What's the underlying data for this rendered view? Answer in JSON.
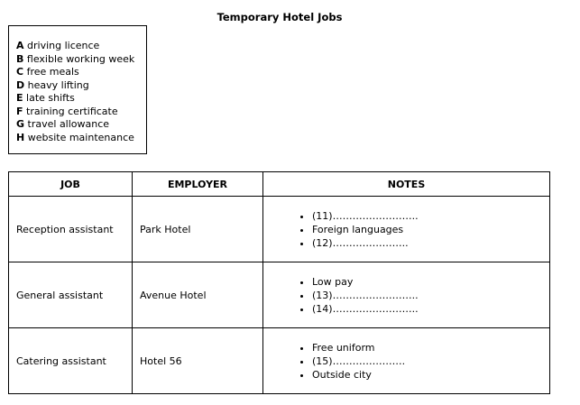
{
  "title": "Temporary Hotel Jobs",
  "options": [
    {
      "letter": "A",
      "text": "driving licence"
    },
    {
      "letter": "B",
      "text": "flexible working week"
    },
    {
      "letter": "C",
      "text": "free meals"
    },
    {
      "letter": "D",
      "text": "heavy lifting"
    },
    {
      "letter": "E",
      "text": "late shifts"
    },
    {
      "letter": "F",
      "text": "training certificate"
    },
    {
      "letter": "G",
      "text": "travel allowance"
    },
    {
      "letter": "H",
      "text": "website maintenance"
    }
  ],
  "table": {
    "headers": [
      "JOB",
      "EMPLOYER",
      "NOTES"
    ],
    "rows": [
      {
        "job": "Reception assistant",
        "employer": "Park Hotel",
        "notes": [
          "(11)……………………..",
          "Foreign languages",
          "(12)………………….."
        ]
      },
      {
        "job": "General assistant",
        "employer": "Avenue Hotel",
        "notes": [
          "Low pay",
          "(13)……………………..",
          "(14)…………………….."
        ]
      },
      {
        "job": "Catering assistant",
        "employer": "Hotel 56",
        "notes": [
          "Free uniform",
          "(15)………………….",
          "Outside city"
        ]
      }
    ]
  }
}
